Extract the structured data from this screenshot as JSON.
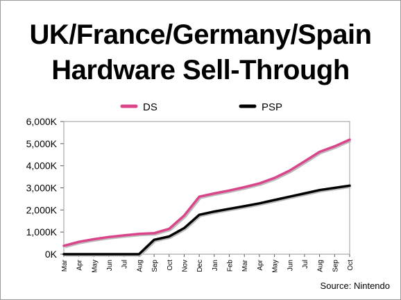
{
  "chart_data": {
    "type": "line",
    "title": "UK/France/Germany/Spain",
    "subtitle": "Hardware Sell-Through",
    "source": "Source: Nintendo",
    "categories": [
      "Mar",
      "Apr",
      "May",
      "Jun",
      "Jul",
      "Aug",
      "Sep",
      "Oct",
      "Nov",
      "Dec",
      "Jan",
      "Feb",
      "Mar",
      "Apr",
      "May",
      "Jun",
      "Jul",
      "Aug",
      "Sep",
      "Oct"
    ],
    "series": [
      {
        "name": "DS",
        "color": "#d9448a",
        "values": [
          380,
          560,
          680,
          780,
          850,
          920,
          950,
          1150,
          1750,
          2600,
          2750,
          2880,
          3030,
          3200,
          3450,
          3780,
          4200,
          4630,
          4880,
          5180
        ]
      },
      {
        "name": "PSP",
        "color": "#000000",
        "values": [
          0,
          0,
          0,
          0,
          0,
          0,
          650,
          800,
          1180,
          1780,
          1930,
          2050,
          2170,
          2300,
          2450,
          2600,
          2750,
          2900,
          3000,
          3100
        ]
      }
    ],
    "yticks": [
      "0K",
      "1,000K",
      "2,000K",
      "3,000K",
      "4,000K",
      "5,000K",
      "6,000K"
    ],
    "ylim": [
      0,
      6000
    ],
    "legend_position": "top",
    "grid": false
  }
}
